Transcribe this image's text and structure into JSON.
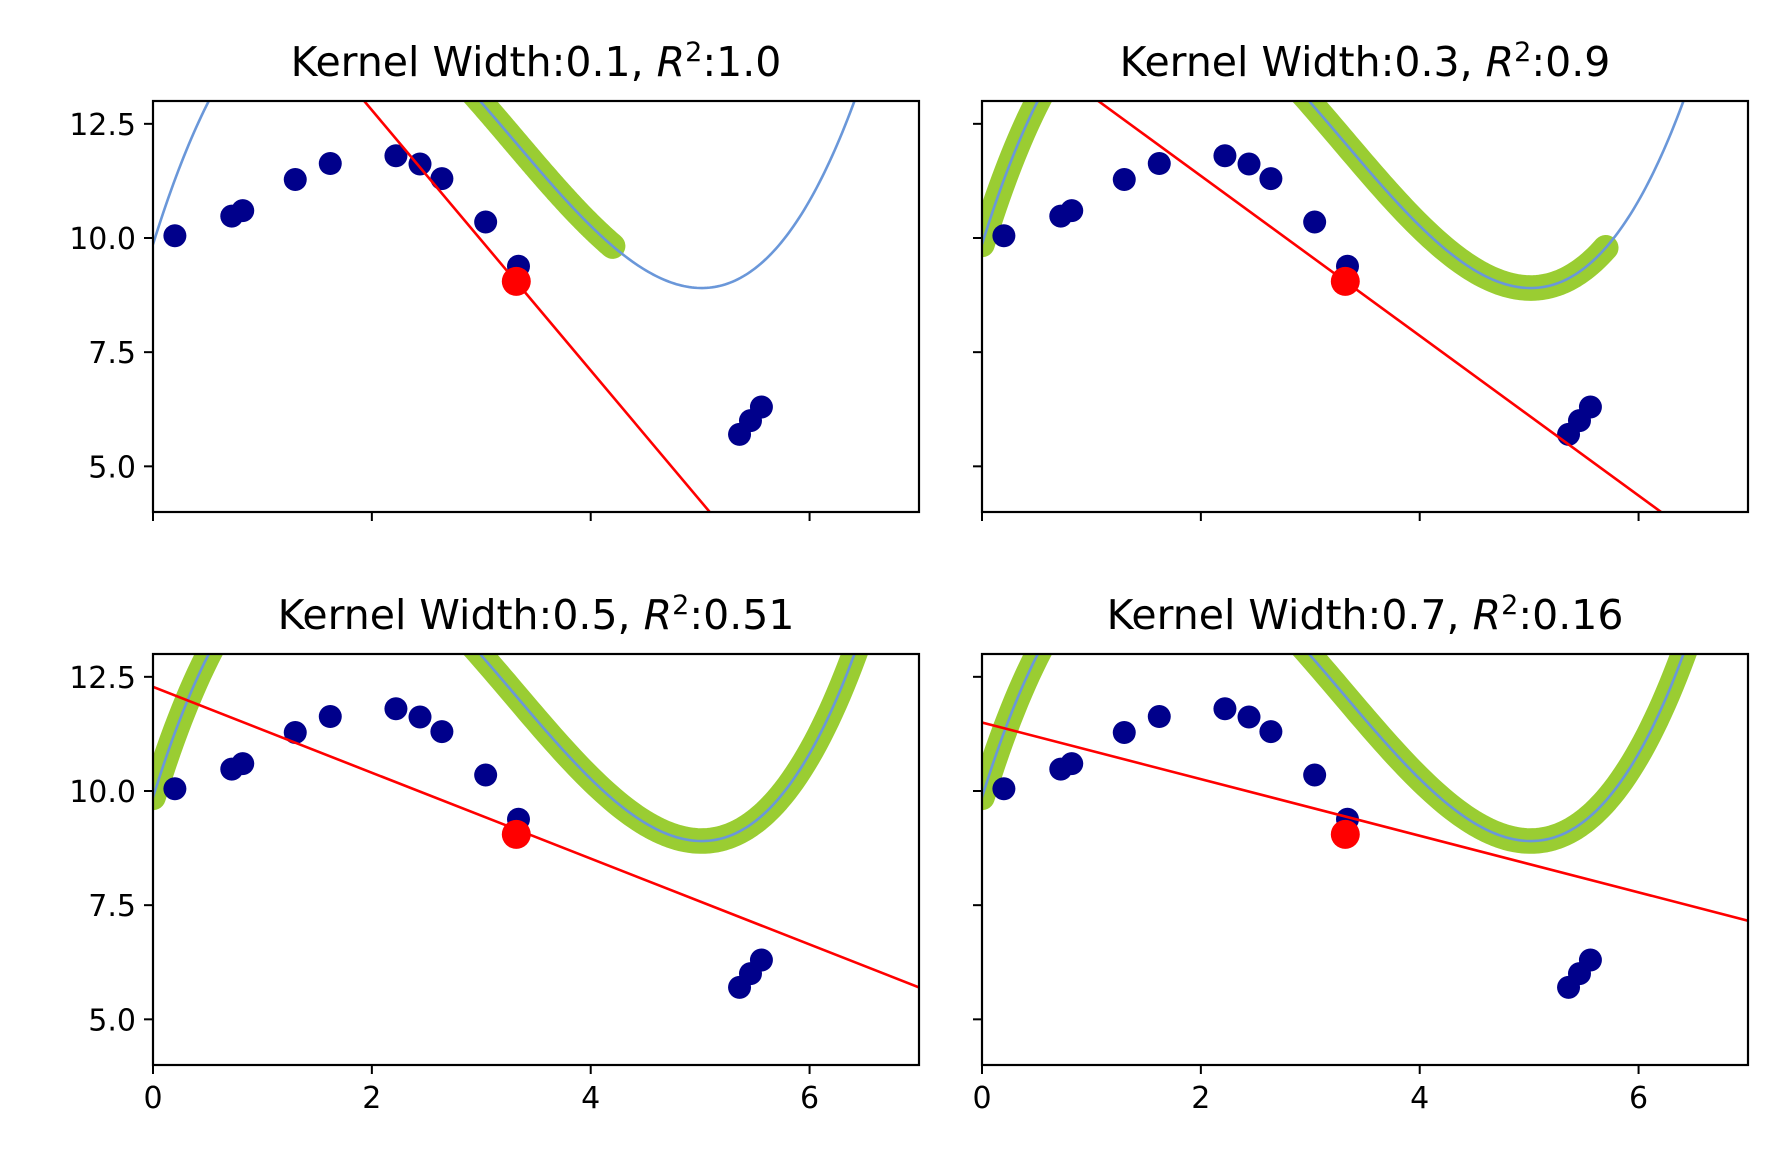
{
  "figure": {
    "layout": "2x2 grid, shared x and y axes",
    "colors": {
      "curve": "#6a97d9",
      "band": "#9acd32",
      "points": "#00008b",
      "focus_point": "#ff0000",
      "fit_line": "#ff0000"
    }
  },
  "chart_data": [
    {
      "type": "scatter",
      "title_prefix": "Kernel Width:0.1, ",
      "title_r2_label": "R",
      "title_r2_sup": "2",
      "title_suffix": ":1.0",
      "kernel_width": 0.1,
      "r2": 1.0,
      "xlim": [
        0,
        7
      ],
      "ylim": [
        4,
        13
      ],
      "x_ticks": [
        0,
        2,
        4,
        6
      ],
      "y_ticks": [
        5.0,
        7.5,
        10.0,
        12.5
      ],
      "x_tick_labels": [],
      "y_tick_labels": [
        "5.0",
        "7.5",
        "10.0",
        "12.5"
      ],
      "points": [
        [
          0.2,
          10.05
        ],
        [
          0.72,
          10.48
        ],
        [
          0.82,
          10.6
        ],
        [
          1.3,
          11.28
        ],
        [
          1.62,
          11.63
        ],
        [
          2.22,
          11.8
        ],
        [
          2.44,
          11.62
        ],
        [
          2.64,
          11.3
        ],
        [
          3.04,
          10.35
        ],
        [
          3.34,
          9.38
        ],
        [
          5.36,
          5.7
        ],
        [
          5.46,
          6.0
        ],
        [
          5.56,
          6.3
        ]
      ],
      "focus_point": [
        3.32,
        9.05
      ],
      "fit_line": {
        "slope": -2.85,
        "intercept": 18.5
      },
      "band_x_range": [
        2.5,
        4.2
      ],
      "band_halfwidth": 0.28
    },
    {
      "type": "scatter",
      "title_prefix": "Kernel Width:0.3, ",
      "title_r2_label": "R",
      "title_r2_sup": "2",
      "title_suffix": ":0.9",
      "kernel_width": 0.3,
      "r2": 0.9,
      "xlim": [
        0,
        7
      ],
      "ylim": [
        4,
        13
      ],
      "x_ticks": [
        0,
        2,
        4,
        6
      ],
      "y_ticks": [
        5.0,
        7.5,
        10.0,
        12.5
      ],
      "x_tick_labels": [],
      "y_tick_labels": [],
      "points": [
        [
          0.2,
          10.05
        ],
        [
          0.72,
          10.48
        ],
        [
          0.82,
          10.6
        ],
        [
          1.3,
          11.28
        ],
        [
          1.62,
          11.63
        ],
        [
          2.22,
          11.8
        ],
        [
          2.44,
          11.62
        ],
        [
          2.64,
          11.3
        ],
        [
          3.04,
          10.35
        ],
        [
          3.34,
          9.38
        ],
        [
          5.36,
          5.7
        ],
        [
          5.46,
          6.0
        ],
        [
          5.56,
          6.3
        ]
      ],
      "focus_point": [
        3.32,
        9.05
      ],
      "fit_line": {
        "slope": -1.75,
        "intercept": 14.86
      },
      "band_x_range": [
        0.0,
        5.7
      ],
      "band_halfwidth": 0.28
    },
    {
      "type": "scatter",
      "title_prefix": "Kernel Width:0.5, ",
      "title_r2_label": "R",
      "title_r2_sup": "2",
      "title_suffix": ":0.51",
      "kernel_width": 0.5,
      "r2": 0.51,
      "xlim": [
        0,
        7
      ],
      "ylim": [
        4,
        13
      ],
      "x_ticks": [
        0,
        2,
        4,
        6
      ],
      "y_ticks": [
        5.0,
        7.5,
        10.0,
        12.5
      ],
      "x_tick_labels": [
        "0",
        "2",
        "4",
        "6"
      ],
      "y_tick_labels": [
        "5.0",
        "7.5",
        "10.0",
        "12.5"
      ],
      "points": [
        [
          0.2,
          10.05
        ],
        [
          0.72,
          10.48
        ],
        [
          0.82,
          10.6
        ],
        [
          1.3,
          11.28
        ],
        [
          1.62,
          11.63
        ],
        [
          2.22,
          11.8
        ],
        [
          2.44,
          11.62
        ],
        [
          2.64,
          11.3
        ],
        [
          3.04,
          10.35
        ],
        [
          3.34,
          9.38
        ],
        [
          5.36,
          5.7
        ],
        [
          5.46,
          6.0
        ],
        [
          5.56,
          6.3
        ]
      ],
      "focus_point": [
        3.32,
        9.05
      ],
      "fit_line": {
        "slope": -0.94,
        "intercept": 12.28
      },
      "band_x_range": [
        0.0,
        7.0
      ],
      "band_halfwidth": 0.28
    },
    {
      "type": "scatter",
      "title_prefix": "Kernel Width:0.7, ",
      "title_r2_label": "R",
      "title_r2_sup": "2",
      "title_suffix": ":0.16",
      "kernel_width": 0.7,
      "r2": 0.16,
      "xlim": [
        0,
        7
      ],
      "ylim": [
        4,
        13
      ],
      "x_ticks": [
        0,
        2,
        4,
        6
      ],
      "y_ticks": [
        5.0,
        7.5,
        10.0,
        12.5
      ],
      "x_tick_labels": [
        "0",
        "2",
        "4",
        "6"
      ],
      "y_tick_labels": [],
      "points": [
        [
          0.2,
          10.05
        ],
        [
          0.72,
          10.48
        ],
        [
          0.82,
          10.6
        ],
        [
          1.3,
          11.28
        ],
        [
          1.62,
          11.63
        ],
        [
          2.22,
          11.8
        ],
        [
          2.44,
          11.62
        ],
        [
          2.64,
          11.3
        ],
        [
          3.04,
          10.35
        ],
        [
          3.34,
          9.38
        ],
        [
          5.36,
          5.7
        ],
        [
          5.46,
          6.0
        ],
        [
          5.56,
          6.3
        ]
      ],
      "focus_point": [
        3.32,
        9.05
      ],
      "fit_line": {
        "slope": -0.62,
        "intercept": 11.5
      },
      "band_x_range": [
        0.0,
        7.0
      ],
      "band_halfwidth": 0.28
    }
  ]
}
